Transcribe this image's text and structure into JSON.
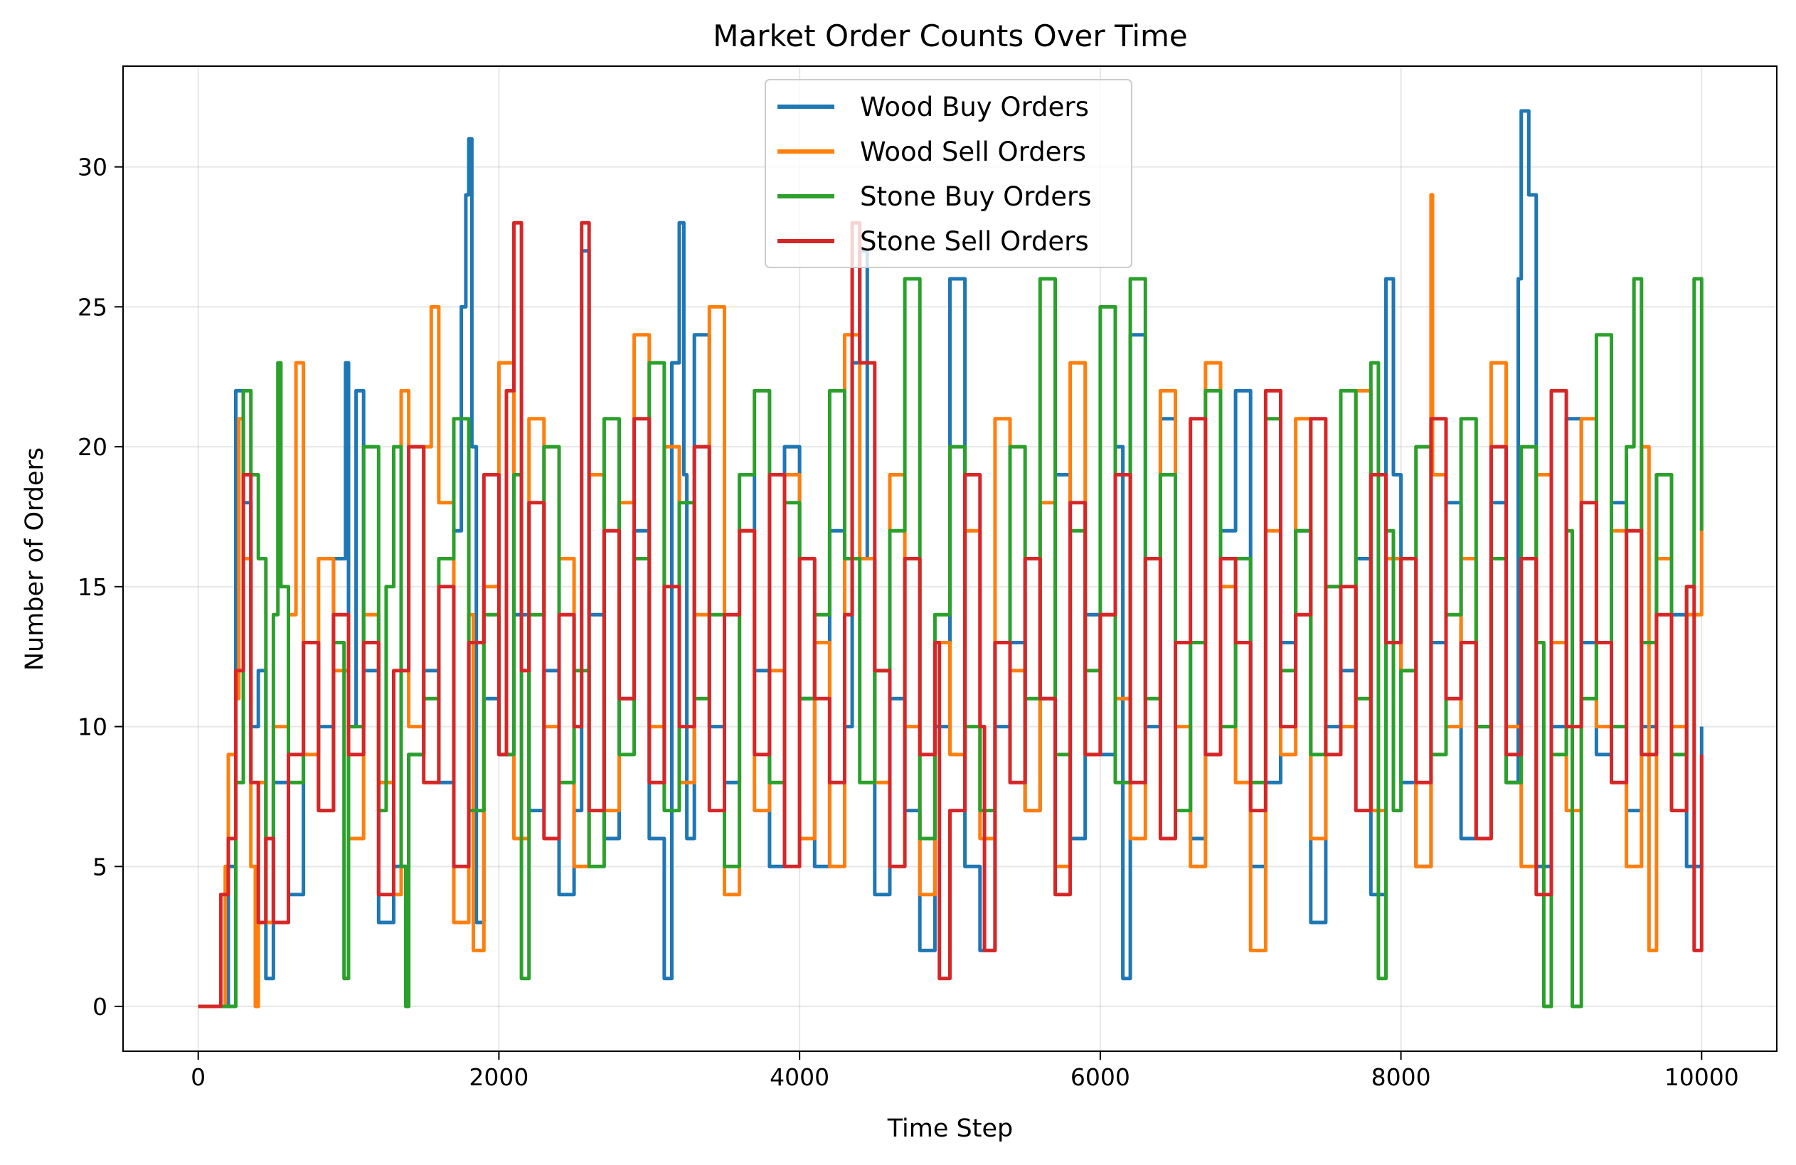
{
  "chart_data": {
    "type": "line",
    "title": "Market Order Counts Over Time",
    "xlabel": "Time Step",
    "ylabel": "Number of Orders",
    "xlim": [
      -500,
      10500
    ],
    "ylim": [
      -1.6,
      33.6
    ],
    "xticks": [
      0,
      2000,
      4000,
      6000,
      8000,
      10000
    ],
    "yticks": [
      0,
      5,
      10,
      15,
      20,
      25,
      30
    ],
    "grid": true,
    "legend_position": "top-center",
    "series": [
      {
        "name": "Wood Buy Orders",
        "color": "#1f77b4",
        "x": [
          0,
          100,
          150,
          200,
          250,
          300,
          350,
          400,
          450,
          500,
          600,
          700,
          800,
          900,
          980,
          1000,
          1050,
          1100,
          1200,
          1300,
          1400,
          1500,
          1600,
          1700,
          1750,
          1780,
          1800,
          1820,
          1850,
          1900,
          2000,
          2100,
          2200,
          2300,
          2400,
          2500,
          2550,
          2600,
          2700,
          2800,
          2900,
          3000,
          3100,
          3150,
          3200,
          3230,
          3250,
          3300,
          3400,
          3500,
          3600,
          3700,
          3800,
          3900,
          4000,
          4100,
          4200,
          4300,
          4350,
          4400,
          4450,
          4500,
          4600,
          4700,
          4800,
          4900,
          5000,
          5100,
          5200,
          5300,
          5400,
          5500,
          5600,
          5700,
          5800,
          5900,
          6000,
          6100,
          6150,
          6200,
          6300,
          6400,
          6500,
          6600,
          6700,
          6800,
          6900,
          7000,
          7100,
          7200,
          7300,
          7400,
          7500,
          7600,
          7700,
          7800,
          7900,
          7950,
          8000,
          8100,
          8200,
          8300,
          8400,
          8500,
          8600,
          8700,
          8780,
          8800,
          8850,
          8900,
          9000,
          9100,
          9200,
          9300,
          9400,
          9500,
          9600,
          9700,
          9800,
          9900,
          10000
        ],
        "values": [
          0,
          0,
          0,
          5,
          22,
          18,
          10,
          12,
          1,
          8,
          4,
          13,
          10,
          16,
          23,
          10,
          22,
          12,
          3,
          5,
          9,
          12,
          8,
          17,
          25,
          29,
          31,
          20,
          3,
          11,
          9,
          14,
          7,
          12,
          4,
          7,
          27,
          14,
          6,
          11,
          17,
          6,
          1,
          23,
          28,
          19,
          6,
          24,
          10,
          8,
          19,
          12,
          5,
          20,
          11,
          5,
          17,
          10,
          23,
          27,
          16,
          4,
          11,
          7,
          2,
          10,
          26,
          5,
          2,
          10,
          13,
          7,
          11,
          19,
          6,
          14,
          9,
          20,
          1,
          24,
          10,
          21,
          13,
          6,
          9,
          17,
          22,
          5,
          8,
          13,
          17,
          3,
          10,
          12,
          16,
          4,
          26,
          19,
          8,
          5,
          13,
          18,
          6,
          10,
          18,
          8,
          26,
          32,
          29,
          5,
          10,
          21,
          13,
          9,
          18,
          7,
          10,
          19,
          14,
          5,
          10
        ]
      },
      {
        "name": "Wood Sell Orders",
        "color": "#ff7f0e",
        "x": [
          0,
          100,
          150,
          180,
          200,
          250,
          270,
          300,
          350,
          380,
          400,
          450,
          500,
          600,
          650,
          700,
          800,
          900,
          1000,
          1100,
          1200,
          1300,
          1350,
          1400,
          1500,
          1550,
          1600,
          1700,
          1800,
          1830,
          1900,
          2000,
          2100,
          2200,
          2300,
          2400,
          2500,
          2600,
          2700,
          2800,
          2900,
          3000,
          3100,
          3200,
          3300,
          3400,
          3500,
          3600,
          3700,
          3800,
          3900,
          4000,
          4100,
          4200,
          4300,
          4400,
          4500,
          4600,
          4700,
          4800,
          4900,
          5000,
          5100,
          5200,
          5300,
          5400,
          5500,
          5600,
          5700,
          5800,
          5900,
          6000,
          6100,
          6200,
          6300,
          6400,
          6500,
          6600,
          6700,
          6800,
          6900,
          7000,
          7100,
          7200,
          7300,
          7400,
          7500,
          7600,
          7700,
          7800,
          7900,
          8000,
          8100,
          8200,
          8210,
          8300,
          8400,
          8500,
          8600,
          8700,
          8800,
          8900,
          9000,
          9100,
          9200,
          9300,
          9400,
          9500,
          9600,
          9650,
          9700,
          9800,
          9900,
          10000
        ],
        "values": [
          0,
          0,
          0,
          5,
          9,
          11,
          21,
          16,
          5,
          0,
          8,
          3,
          10,
          14,
          23,
          9,
          16,
          12,
          6,
          14,
          8,
          4,
          22,
          10,
          20,
          25,
          18,
          3,
          14,
          2,
          15,
          23,
          6,
          21,
          10,
          16,
          5,
          19,
          7,
          18,
          24,
          10,
          20,
          8,
          14,
          25,
          4,
          17,
          7,
          12,
          19,
          6,
          13,
          5,
          24,
          16,
          8,
          19,
          10,
          4,
          13,
          9,
          17,
          6,
          21,
          12,
          7,
          18,
          5,
          23,
          9,
          14,
          11,
          6,
          16,
          22,
          10,
          5,
          23,
          15,
          8,
          2,
          17,
          9,
          21,
          6,
          15,
          10,
          22,
          7,
          16,
          12,
          5,
          29,
          19,
          10,
          16,
          6,
          23,
          10,
          5,
          19,
          13,
          7,
          21,
          10,
          17,
          5,
          20,
          2,
          16,
          10,
          14,
          20
        ]
      },
      {
        "name": "Stone Buy Orders",
        "color": "#2ca02c",
        "x": [
          0,
          100,
          150,
          200,
          250,
          300,
          350,
          400,
          450,
          500,
          530,
          550,
          600,
          700,
          800,
          900,
          970,
          1000,
          1100,
          1200,
          1250,
          1300,
          1350,
          1380,
          1400,
          1500,
          1600,
          1700,
          1800,
          1900,
          2000,
          2100,
          2150,
          2200,
          2300,
          2400,
          2500,
          2600,
          2700,
          2800,
          2900,
          3000,
          3100,
          3200,
          3300,
          3400,
          3500,
          3600,
          3700,
          3800,
          3900,
          4000,
          4100,
          4200,
          4300,
          4400,
          4500,
          4600,
          4700,
          4800,
          4900,
          5000,
          5100,
          5200,
          5300,
          5400,
          5500,
          5600,
          5700,
          5800,
          5900,
          6000,
          6100,
          6200,
          6300,
          6400,
          6500,
          6600,
          6700,
          6800,
          6900,
          7000,
          7100,
          7200,
          7300,
          7400,
          7500,
          7600,
          7700,
          7800,
          7850,
          7900,
          7950,
          8000,
          8100,
          8200,
          8300,
          8400,
          8500,
          8600,
          8700,
          8800,
          8900,
          8950,
          9000,
          9100,
          9140,
          9200,
          9300,
          9400,
          9500,
          9550,
          9600,
          9700,
          9800,
          9900,
          9950,
          10000
        ],
        "values": [
          0,
          0,
          0,
          0,
          8,
          22,
          19,
          16,
          6,
          14,
          23,
          15,
          8,
          13,
          7,
          13,
          1,
          10,
          20,
          7,
          15,
          20,
          5,
          0,
          9,
          11,
          16,
          21,
          7,
          14,
          9,
          19,
          1,
          14,
          20,
          8,
          12,
          5,
          21,
          9,
          16,
          23,
          7,
          18,
          11,
          14,
          5,
          19,
          22,
          8,
          18,
          11,
          14,
          22,
          16,
          8,
          12,
          17,
          26,
          6,
          14,
          20,
          10,
          7,
          13,
          20,
          11,
          26,
          9,
          17,
          12,
          25,
          8,
          26,
          11,
          19,
          7,
          13,
          22,
          10,
          16,
          8,
          21,
          12,
          17,
          9,
          15,
          22,
          11,
          23,
          1,
          17,
          7,
          12,
          20,
          9,
          14,
          21,
          10,
          16,
          8,
          20,
          13,
          0,
          9,
          17,
          0,
          11,
          24,
          10,
          20,
          26,
          13,
          19,
          9,
          15,
          26,
          17
        ]
      },
      {
        "name": "Stone Sell Orders",
        "color": "#d62728",
        "x": [
          0,
          100,
          150,
          200,
          250,
          300,
          350,
          400,
          450,
          500,
          600,
          700,
          800,
          900,
          1000,
          1100,
          1200,
          1300,
          1400,
          1500,
          1600,
          1700,
          1800,
          1900,
          2000,
          2050,
          2100,
          2150,
          2200,
          2300,
          2400,
          2500,
          2550,
          2600,
          2700,
          2800,
          2900,
          3000,
          3100,
          3200,
          3300,
          3400,
          3500,
          3600,
          3700,
          3800,
          3900,
          4000,
          4100,
          4200,
          4300,
          4350,
          4400,
          4500,
          4600,
          4700,
          4800,
          4900,
          4930,
          5000,
          5100,
          5200,
          5230,
          5300,
          5400,
          5500,
          5600,
          5700,
          5800,
          5900,
          6000,
          6100,
          6200,
          6300,
          6400,
          6500,
          6600,
          6700,
          6800,
          6900,
          7000,
          7100,
          7200,
          7300,
          7400,
          7500,
          7600,
          7700,
          7800,
          7900,
          8000,
          8100,
          8200,
          8300,
          8400,
          8500,
          8600,
          8700,
          8800,
          8900,
          9000,
          9100,
          9200,
          9300,
          9400,
          9500,
          9600,
          9700,
          9800,
          9900,
          9950,
          10000
        ],
        "values": [
          0,
          0,
          4,
          6,
          12,
          19,
          8,
          3,
          6,
          3,
          9,
          13,
          7,
          14,
          9,
          13,
          4,
          12,
          20,
          8,
          15,
          5,
          13,
          19,
          9,
          22,
          28,
          12,
          18,
          6,
          14,
          10,
          28,
          7,
          17,
          11,
          21,
          8,
          15,
          10,
          20,
          7,
          14,
          17,
          9,
          19,
          5,
          16,
          11,
          8,
          14,
          28,
          23,
          12,
          5,
          16,
          9,
          13,
          1,
          7,
          19,
          10,
          2,
          13,
          8,
          16,
          11,
          4,
          18,
          9,
          14,
          19,
          8,
          16,
          6,
          13,
          21,
          9,
          16,
          13,
          7,
          22,
          10,
          14,
          21,
          9,
          15,
          7,
          19,
          13,
          16,
          8,
          21,
          11,
          13,
          6,
          20,
          9,
          16,
          4,
          22,
          10,
          18,
          13,
          8,
          17,
          9,
          14,
          7,
          15,
          2,
          9
        ]
      }
    ]
  }
}
